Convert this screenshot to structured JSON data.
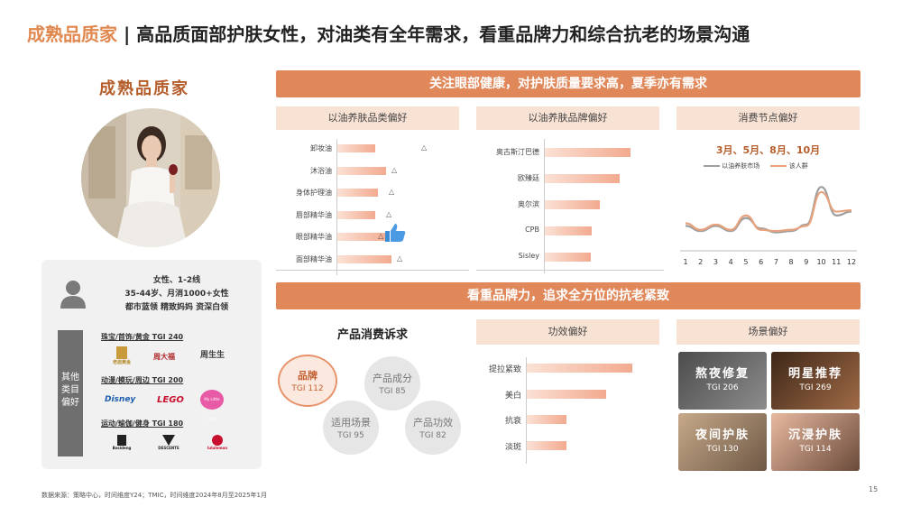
{
  "header": {
    "title_accent": "成熟品质家",
    "title_sep": " | ",
    "title_main": "高品质面部护肤女性，对油类有全年需求，看重品牌力和综合抗老的场景沟通"
  },
  "persona": {
    "name": "成熟品质家",
    "profile_lines": [
      "女性、1-2线",
      "35-44岁、月消1000+女性",
      "都市蓝领 精致妈妈 资深白领"
    ],
    "side_label": "其他类目偏好",
    "categories": [
      {
        "title": "珠宝/首饰/黄金 TGI 240",
        "brands": [
          "老庙黄金",
          "周大福",
          "周生生"
        ]
      },
      {
        "title": "动漫/模玩/周边 TGI 200",
        "brands": [
          "Disney",
          "LEGO",
          "My Little Pony"
        ]
      },
      {
        "title": "运动/瑜伽/健身 TGI 180",
        "brands": [
          "Bosideng",
          "DESCENTE",
          "lululemon"
        ]
      }
    ]
  },
  "section1": {
    "banner": "关注眼部健康，对护肤质量要求高，夏季亦有需求",
    "category_pref": {
      "header": "以油养肤品类偏好",
      "items": [
        {
          "label": "卸妆油",
          "value": 0.28,
          "marker": 0.62
        },
        {
          "label": "沐浴油",
          "value": 0.36,
          "marker": 0.4
        },
        {
          "label": "身体护理油",
          "value": 0.3,
          "marker": 0.38
        },
        {
          "label": "唇部精华油",
          "value": 0.28,
          "marker": 0.36
        },
        {
          "label": "眼部精华油",
          "value": 0.38,
          "marker": 0.3
        },
        {
          "label": "面部精华油",
          "value": 0.4,
          "marker": 0.44
        }
      ]
    },
    "brand_pref": {
      "header": "以油养肤品牌偏好",
      "items": [
        {
          "label": "奥古斯汀巴德",
          "value": 0.86
        },
        {
          "label": "欧臻廷",
          "value": 0.75
        },
        {
          "label": "奥尔滨",
          "value": 0.55
        },
        {
          "label": "CPB",
          "value": 0.47
        },
        {
          "label": "Sisley",
          "value": 0.46
        }
      ]
    },
    "season_pref": {
      "header": "消费节点偏好",
      "highlight": "3月、5月、8月、10月",
      "chart_data": {
        "type": "line",
        "x": [
          1,
          2,
          3,
          4,
          5,
          6,
          7,
          8,
          9,
          10,
          11,
          12
        ],
        "series": [
          {
            "name": "以油养肤市场",
            "color": "#9e9e9e",
            "values": [
              0.3,
              0.22,
              0.3,
              0.22,
              0.42,
              0.26,
              0.2,
              0.22,
              0.32,
              0.9,
              0.46,
              0.52
            ]
          },
          {
            "name": "该人群",
            "color": "#e7a27d",
            "values": [
              0.34,
              0.24,
              0.32,
              0.24,
              0.46,
              0.24,
              0.22,
              0.24,
              0.3,
              0.82,
              0.52,
              0.54
            ]
          }
        ],
        "xticks": [
          "1",
          "2",
          "3",
          "4",
          "5",
          "6",
          "7",
          "8",
          "9",
          "10",
          "11",
          "12"
        ]
      }
    }
  },
  "section2": {
    "banner": "看重品牌力，追求全方位的抗老紧致",
    "demands": {
      "header": "产品消费诉求",
      "bubbles": [
        {
          "name": "品牌",
          "tgi": "TGI 112"
        },
        {
          "name": "产品成分",
          "tgi": "TGI 85"
        },
        {
          "name": "适用场景",
          "tgi": "TGI 95"
        },
        {
          "name": "产品功效",
          "tgi": "TGI 82"
        }
      ]
    },
    "efficacy": {
      "header": "功效偏好",
      "items": [
        {
          "label": "提拉紧致",
          "value": 0.9
        },
        {
          "label": "美白",
          "value": 0.68
        },
        {
          "label": "抗衰",
          "value": 0.34
        },
        {
          "label": "淡斑",
          "value": 0.34
        }
      ]
    },
    "scenes": {
      "header": "场景偏好",
      "items": [
        {
          "name": "熬夜修复",
          "tgi": "TGI 206",
          "bg": "#6b6b6b"
        },
        {
          "name": "明星推荐",
          "tgi": "TGI 269",
          "bg": "#5e3d2a"
        },
        {
          "name": "夜间护肤",
          "tgi": "TGI 130",
          "bg": "#c9b7a0"
        },
        {
          "name": "沉浸护肤",
          "tgi": "TGI 114",
          "bg": "#8d6a52"
        }
      ]
    }
  },
  "footer": {
    "source": "数据来源：策略中心，时间维度Y24；TMIC，时间维度2024年8月至2025年1月",
    "page": "15"
  }
}
